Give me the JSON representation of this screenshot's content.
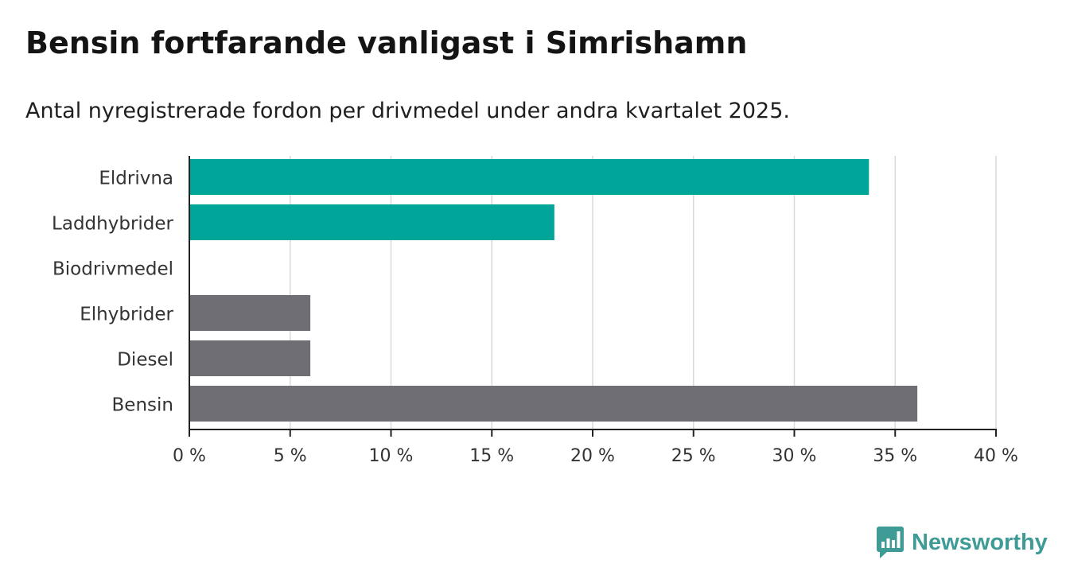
{
  "header": {
    "title": "Bensin fortfarande vanligast i Simrishamn",
    "subtitle": "Antal nyregistrerade fordon per drivmedel under andra kvartalet 2025."
  },
  "chart_data": {
    "type": "bar",
    "orientation": "horizontal",
    "title": "Bensin fortfarande vanligast i Simrishamn",
    "subtitle": "Antal nyregistrerade fordon per drivmedel under andra kvartalet 2025.",
    "categories": [
      "Eldrivna",
      "Laddhybrider",
      "Biodrivmedel",
      "Elhybrider",
      "Diesel",
      "Bensin"
    ],
    "values": [
      33.7,
      18.1,
      0,
      6.0,
      6.0,
      36.1
    ],
    "bar_colors": [
      "#00a59a",
      "#00a59a",
      "#6f6e74",
      "#6f6e74",
      "#6f6e74",
      "#6f6e74"
    ],
    "xlim": [
      0,
      40
    ],
    "xticks": [
      0,
      5,
      10,
      15,
      20,
      25,
      30,
      35,
      40
    ],
    "xtick_labels": [
      "0 %",
      "5 %",
      "10 %",
      "15 %",
      "20 %",
      "25 %",
      "30 %",
      "35 %",
      "40 %"
    ],
    "xlabel": "",
    "ylabel": "",
    "grid": "vertical",
    "legend": "none"
  },
  "colors": {
    "accent": "#00a59a",
    "neutral": "#6f6e74",
    "grid": "#d9d9d9",
    "brand": "#3e9b96"
  },
  "logo": {
    "text": "Newsworthy",
    "icon": "newsworthy-chart-icon"
  }
}
